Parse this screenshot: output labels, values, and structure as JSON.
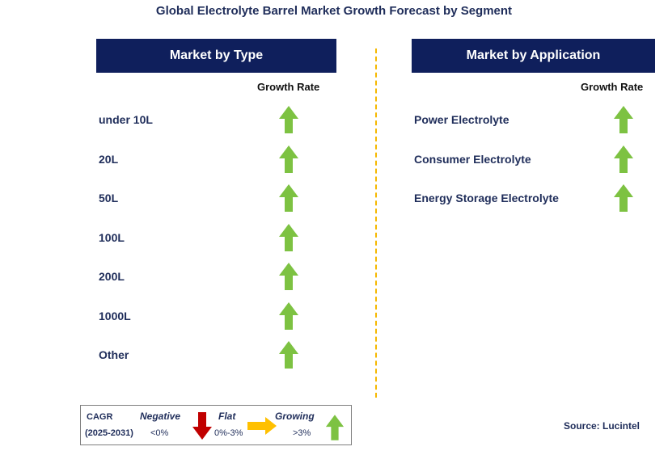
{
  "title": "Global Electrolyte Barrel Market Growth Forecast by Segment",
  "left_panel": {
    "header": "Market by Type",
    "growth_label": "Growth Rate",
    "rows": [
      {
        "label": "under 10L",
        "trend": "growing"
      },
      {
        "label": "20L",
        "trend": "growing"
      },
      {
        "label": "50L",
        "trend": "growing"
      },
      {
        "label": "100L",
        "trend": "growing"
      },
      {
        "label": "200L",
        "trend": "growing"
      },
      {
        "label": "1000L",
        "trend": "growing"
      },
      {
        "label": "Other",
        "trend": "growing"
      }
    ]
  },
  "right_panel": {
    "header": "Market by Application",
    "growth_label": "Growth Rate",
    "rows": [
      {
        "label": "Power Electrolyte",
        "trend": "growing"
      },
      {
        "label": "Consumer Electrolyte",
        "trend": "growing"
      },
      {
        "label": "Energy Storage Electrolyte",
        "trend": "growing"
      }
    ]
  },
  "legend": {
    "cagr_label": "CAGR",
    "period": "(2025-2031)",
    "negative": {
      "label": "Negative",
      "range": "<0%",
      "color": "#c00000",
      "icon": "down-arrow-icon"
    },
    "flat": {
      "label": "Flat",
      "range": "0%-3%",
      "color": "#ffc000",
      "icon": "right-arrow-icon"
    },
    "growing": {
      "label": "Growing",
      "range": ">3%",
      "color": "#7dc242",
      "icon": "up-arrow-icon"
    }
  },
  "source": "Source: Lucintel",
  "colors": {
    "header_bg": "#0f1f5c",
    "text": "#1f2d5a",
    "divider": "#f5b800",
    "up_arrow": "#7dc242"
  }
}
